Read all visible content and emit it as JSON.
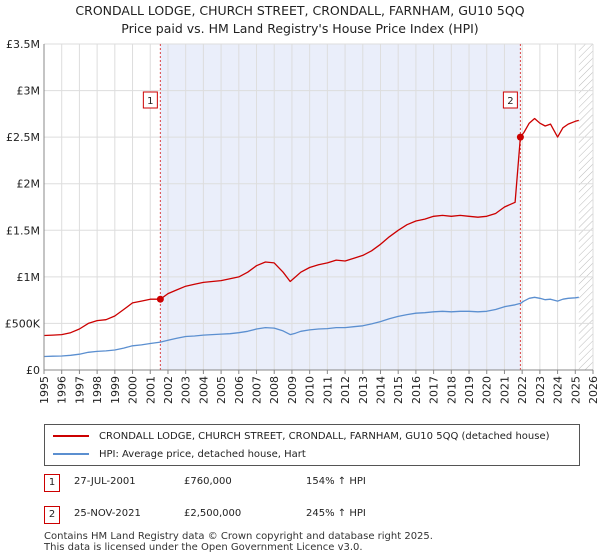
{
  "chart_data": {
    "type": "line",
    "title": "CRONDALL LODGE, CHURCH STREET, CRONDALL, FARNHAM, GU10 5QQ",
    "subtitle": "Price paid vs. HM Land Registry's House Price Index (HPI)",
    "xlim": [
      1995,
      2026
    ],
    "ylim": [
      0,
      3500000
    ],
    "x_ticks": [
      1995,
      1996,
      1997,
      1998,
      1999,
      2000,
      2001,
      2002,
      2003,
      2004,
      2005,
      2006,
      2007,
      2008,
      2009,
      2010,
      2011,
      2012,
      2013,
      2014,
      2015,
      2016,
      2017,
      2018,
      2019,
      2020,
      2021,
      2022,
      2023,
      2024,
      2025,
      2026
    ],
    "y_ticks": [
      {
        "value": 0,
        "label": "£0"
      },
      {
        "value": 500000,
        "label": "£500K"
      },
      {
        "value": 1000000,
        "label": "£1M"
      },
      {
        "value": 1500000,
        "label": "£1.5M"
      },
      {
        "value": 2000000,
        "label": "£2M"
      },
      {
        "value": 2500000,
        "label": "£2.5M"
      },
      {
        "value": 3000000,
        "label": "£3M"
      },
      {
        "value": 3500000,
        "label": "£3.5M"
      }
    ],
    "shaded_period": [
      2001.57,
      2021.9
    ],
    "hatched_from": 2025.2,
    "series": [
      {
        "name": "CRONDALL LODGE, CHURCH STREET, CRONDALL, FARNHAM, GU10 5QQ (detached house)",
        "color": "#cc0000",
        "x": [
          1995.0,
          1995.5,
          1996.0,
          1996.5,
          1997.0,
          1997.5,
          1998.0,
          1998.5,
          1999.0,
          1999.5,
          2000.0,
          2000.5,
          2001.0,
          2001.57,
          2002.0,
          2002.5,
          2003.0,
          2003.5,
          2004.0,
          2004.5,
          2005.0,
          2005.5,
          2006.0,
          2006.5,
          2007.0,
          2007.5,
          2008.0,
          2008.5,
          2008.9,
          2009.2,
          2009.5,
          2010.0,
          2010.5,
          2011.0,
          2011.5,
          2012.0,
          2012.5,
          2013.0,
          2013.5,
          2014.0,
          2014.5,
          2015.0,
          2015.5,
          2016.0,
          2016.5,
          2017.0,
          2017.5,
          2018.0,
          2018.5,
          2019.0,
          2019.5,
          2020.0,
          2020.5,
          2021.0,
          2021.6,
          2021.9,
          2022.1,
          2022.4,
          2022.7,
          2023.0,
          2023.3,
          2023.6,
          2024.0,
          2024.3,
          2024.6,
          2025.0,
          2025.2
        ],
        "values": [
          370000,
          375000,
          380000,
          400000,
          440000,
          500000,
          530000,
          540000,
          580000,
          650000,
          720000,
          740000,
          760000,
          760000,
          820000,
          860000,
          900000,
          920000,
          940000,
          950000,
          960000,
          980000,
          1000000,
          1050000,
          1120000,
          1160000,
          1150000,
          1050000,
          950000,
          1000000,
          1050000,
          1100000,
          1130000,
          1150000,
          1180000,
          1170000,
          1200000,
          1230000,
          1280000,
          1350000,
          1430000,
          1500000,
          1560000,
          1600000,
          1620000,
          1650000,
          1660000,
          1650000,
          1660000,
          1650000,
          1640000,
          1650000,
          1680000,
          1750000,
          1800000,
          2500000,
          2550000,
          2650000,
          2700000,
          2650000,
          2620000,
          2640000,
          2500000,
          2600000,
          2640000,
          2670000,
          2680000
        ]
      },
      {
        "name": "HPI: Average price, detached house, Hart",
        "color": "#5b8fd0",
        "x": [
          1995.0,
          1995.5,
          1996.0,
          1996.5,
          1997.0,
          1997.5,
          1998.0,
          1998.5,
          1999.0,
          1999.5,
          2000.0,
          2000.5,
          2001.0,
          2001.57,
          2002.0,
          2002.5,
          2003.0,
          2003.5,
          2004.0,
          2004.5,
          2005.0,
          2005.5,
          2006.0,
          2006.5,
          2007.0,
          2007.5,
          2008.0,
          2008.5,
          2008.9,
          2009.2,
          2009.5,
          2010.0,
          2010.5,
          2011.0,
          2011.5,
          2012.0,
          2012.5,
          2013.0,
          2013.5,
          2014.0,
          2014.5,
          2015.0,
          2015.5,
          2016.0,
          2016.5,
          2017.0,
          2017.5,
          2018.0,
          2018.5,
          2019.0,
          2019.5,
          2020.0,
          2020.5,
          2021.0,
          2021.6,
          2021.9,
          2022.1,
          2022.4,
          2022.7,
          2023.0,
          2023.3,
          2023.6,
          2024.0,
          2024.3,
          2024.6,
          2025.0,
          2025.2
        ],
        "values": [
          145000,
          148000,
          150000,
          158000,
          170000,
          190000,
          200000,
          205000,
          215000,
          235000,
          260000,
          270000,
          285000,
          300000,
          320000,
          340000,
          360000,
          365000,
          375000,
          380000,
          385000,
          390000,
          400000,
          415000,
          440000,
          455000,
          450000,
          420000,
          380000,
          395000,
          415000,
          430000,
          440000,
          445000,
          455000,
          455000,
          465000,
          475000,
          495000,
          520000,
          550000,
          575000,
          595000,
          610000,
          615000,
          625000,
          630000,
          625000,
          630000,
          630000,
          625000,
          630000,
          650000,
          680000,
          700000,
          715000,
          740000,
          770000,
          780000,
          770000,
          755000,
          760000,
          740000,
          760000,
          770000,
          775000,
          780000
        ]
      }
    ],
    "markers": [
      {
        "label": "1",
        "x": 2001.57,
        "value": 760000
      },
      {
        "label": "2",
        "x": 2021.9,
        "value": 2500000
      }
    ]
  },
  "legend": {
    "series1": "CRONDALL LODGE, CHURCH STREET, CRONDALL, FARNHAM, GU10 5QQ (detached house)",
    "series2": "HPI: Average price, detached house, Hart"
  },
  "sales": [
    {
      "num": "1",
      "date": "27-JUL-2001",
      "price": "£760,000",
      "hpi": "154% ↑ HPI"
    },
    {
      "num": "2",
      "date": "25-NOV-2021",
      "price": "£2,500,000",
      "hpi": "245% ↑ HPI"
    }
  ],
  "footer": {
    "line1": "Contains HM Land Registry data © Crown copyright and database right 2025.",
    "line2": "This data is licensed under the Open Government Licence v3.0."
  }
}
